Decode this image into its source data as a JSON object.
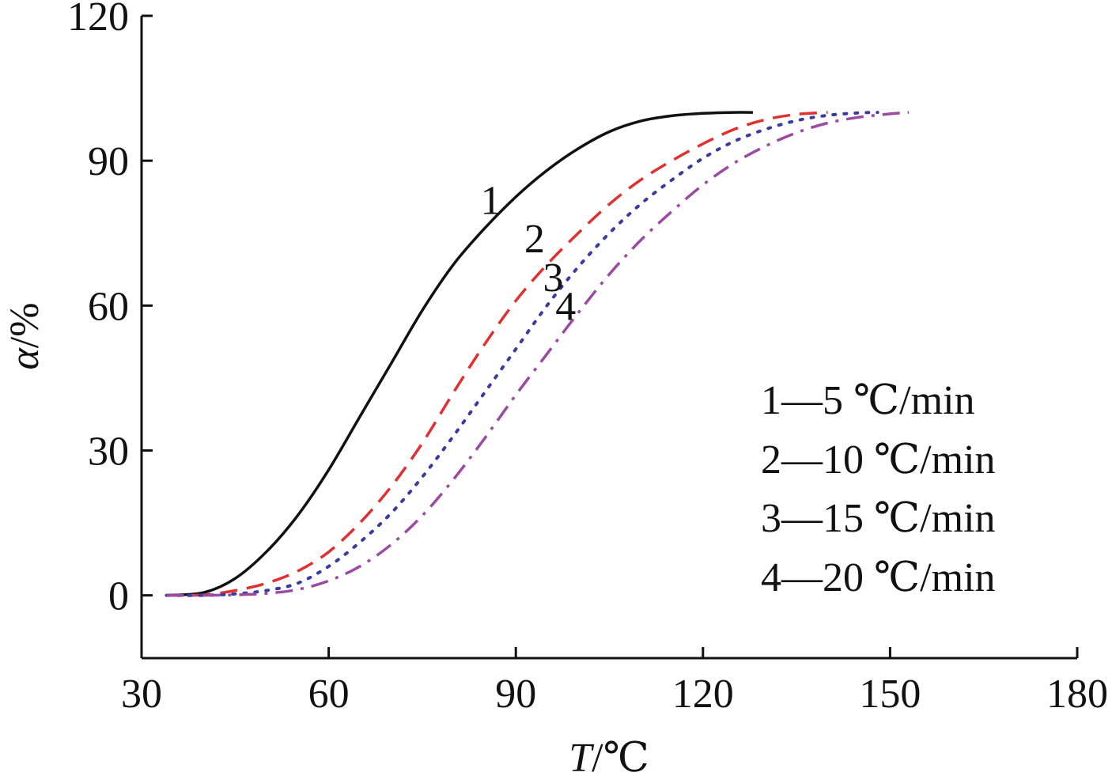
{
  "chart_data": {
    "type": "line",
    "title": "",
    "xlabel_var": "T",
    "xlabel_unit": "/℃",
    "ylabel_var": "α",
    "ylabel_unit": "/%",
    "xlim": [
      30,
      180
    ],
    "ylim": [
      -13,
      120
    ],
    "xticks": [
      "30",
      "60",
      "90",
      "120",
      "150",
      "180"
    ],
    "yticks": [
      "0",
      "30",
      "60",
      "90",
      "120"
    ],
    "grid": false,
    "legend_position": "lower-right",
    "legend": [
      "1—5 ℃/min",
      "2—10 ℃/min",
      "3—15 ℃/min",
      "4—20 ℃/min"
    ],
    "series": [
      {
        "name": "1",
        "color": "#111111",
        "style": "solid",
        "label_at": [
          86,
          79
        ],
        "x": [
          34,
          40,
          45,
          50,
          55,
          60,
          65,
          70,
          75,
          80,
          85,
          90,
          95,
          100,
          105,
          110,
          115,
          120,
          125,
          128
        ],
        "y": [
          0,
          0.6,
          3.5,
          9,
          16.5,
          26,
          37,
          48,
          59,
          68.5,
          76,
          82.5,
          88,
          92.5,
          96,
          98.2,
          99.3,
          99.8,
          100,
          100
        ]
      },
      {
        "name": "2",
        "color": "#e03030",
        "style": "dashed",
        "label_at": [
          93,
          71
        ],
        "x": [
          34,
          40,
          45,
          50,
          55,
          60,
          65,
          70,
          75,
          80,
          85,
          90,
          95,
          100,
          105,
          110,
          115,
          120,
          125,
          130,
          135,
          140
        ],
        "y": [
          0,
          0.1,
          1,
          2.5,
          5,
          9,
          15,
          22.5,
          31.5,
          42,
          52,
          61,
          68.5,
          75,
          81,
          86,
          90,
          93.5,
          96.5,
          98.5,
          99.6,
          100
        ]
      },
      {
        "name": "3",
        "color": "#3a3aa0",
        "style": "dotted",
        "label_at": [
          96,
          63
        ],
        "x": [
          34,
          40,
          45,
          50,
          55,
          60,
          65,
          70,
          75,
          80,
          85,
          90,
          95,
          100,
          105,
          110,
          115,
          120,
          125,
          130,
          135,
          140,
          145,
          148
        ],
        "y": [
          0,
          0,
          0.3,
          1,
          2.5,
          6,
          11,
          17,
          24.5,
          33,
          42,
          51,
          60,
          68,
          75,
          81,
          86,
          90.5,
          94,
          96.5,
          98.3,
          99.4,
          99.9,
          100
        ]
      },
      {
        "name": "4",
        "color": "#9a4aa0",
        "style": "dashdot",
        "label_at": [
          98,
          57
        ],
        "x": [
          34,
          40,
          45,
          50,
          55,
          60,
          65,
          70,
          75,
          80,
          85,
          90,
          95,
          100,
          105,
          110,
          115,
          120,
          125,
          130,
          135,
          140,
          145,
          150,
          153
        ],
        "y": [
          0,
          0,
          0.1,
          0.4,
          1.2,
          3,
          6,
          10.5,
          16.5,
          24,
          32.5,
          41.5,
          50,
          58.5,
          66.5,
          73.5,
          79.5,
          85,
          89.5,
          93,
          95.8,
          97.8,
          99,
          99.7,
          100
        ]
      }
    ]
  }
}
